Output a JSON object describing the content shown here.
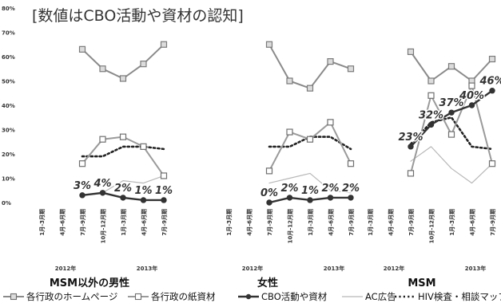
{
  "chart_data": {
    "type": "line",
    "title": "[数値はCBO活動や資材の認知]",
    "y_ticks": [
      "80%",
      "70%",
      "60%",
      "50%",
      "40%",
      "30%",
      "20%",
      "10%",
      "0%"
    ],
    "ylim": [
      0,
      80
    ],
    "x_ticks": [
      "1月-3月期",
      "4月-6月期",
      "7月-9月期",
      "10月-12月期",
      "1月-3月期",
      "4月-6月期",
      "7月-9月期"
    ],
    "year_labels": [
      "2012年",
      "2013年"
    ],
    "series_names": [
      "各行政のホームページ",
      "各行政の紙資材",
      "CBO活動や資材",
      "AC広告",
      "HIV検査・相談マップ"
    ],
    "colors": {
      "homepage": "#8a8a8a",
      "paper": "#9a9a9a",
      "cbo": "#333333",
      "ac": "#b8b8b8",
      "hiv": "#222222"
    },
    "panels": [
      {
        "label": "MSM以外の男性",
        "series": {
          "homepage": [
            null,
            null,
            63,
            55,
            51,
            57,
            65
          ],
          "paper": [
            null,
            null,
            16,
            26,
            27,
            23,
            11
          ],
          "cbo": [
            null,
            null,
            3,
            4,
            2,
            1,
            1
          ],
          "ac": [
            null,
            null,
            3,
            4,
            9,
            8,
            11
          ],
          "hiv": [
            null,
            null,
            19,
            19,
            23,
            23,
            22
          ]
        },
        "cbo_labels": [
          "3%",
          "4%",
          "2%",
          "1%",
          "1%"
        ]
      },
      {
        "label": "女性",
        "series": {
          "homepage": [
            null,
            null,
            65,
            50,
            47,
            58,
            55
          ],
          "paper": [
            null,
            null,
            13,
            29,
            26,
            33,
            16
          ],
          "cbo": [
            null,
            null,
            0,
            2,
            1,
            2,
            2
          ],
          "ac": [
            null,
            null,
            8,
            10,
            12,
            5,
            4
          ],
          "hiv": [
            null,
            null,
            23,
            23,
            27,
            27,
            22
          ]
        },
        "cbo_labels": [
          "0%",
          "2%",
          "1%",
          "2%",
          "2%"
        ]
      },
      {
        "label": "MSM",
        "series": {
          "homepage": [
            null,
            null,
            62,
            50,
            56,
            50,
            59
          ],
          "paper": [
            null,
            null,
            12,
            44,
            28,
            48,
            16
          ],
          "cbo": [
            null,
            null,
            23,
            32,
            37,
            40,
            46
          ],
          "ac": [
            null,
            null,
            17,
            23,
            14,
            8,
            16
          ],
          "hiv": [
            null,
            null,
            24,
            33,
            35,
            23,
            22
          ]
        },
        "cbo_labels": [
          "23%",
          "32%",
          "37%",
          "40%",
          "46%"
        ]
      }
    ],
    "legend": [
      "各行政のホームページ",
      "各行政の紙資材",
      "CBO活動や資材",
      "AC広告",
      "HIV検査・相談マップ"
    ]
  }
}
